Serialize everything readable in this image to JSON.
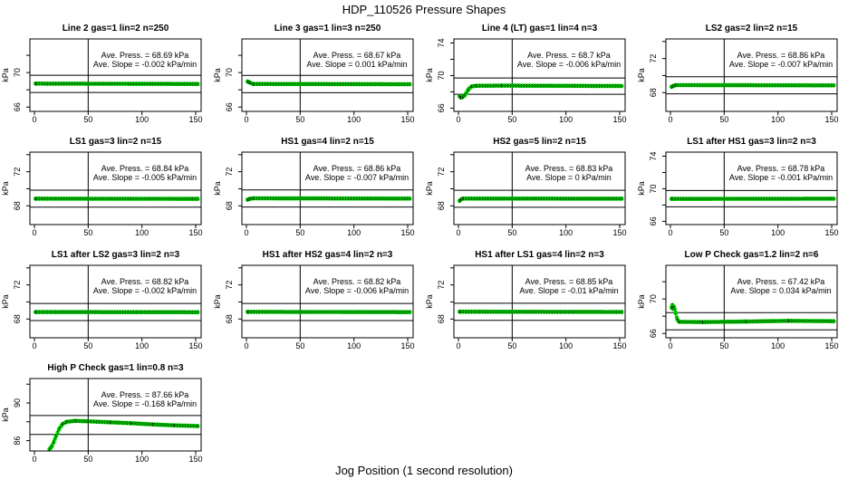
{
  "title": "HDP_110526  Pressure Shapes",
  "xlabel": "Jog Position (1 second resolution)",
  "colors": {
    "point_green": "#00e000",
    "axis_black": "#000000",
    "background": "#ffffff"
  },
  "chart_data": {
    "type": "scatter",
    "layout": "4x4 grid, 13 panels",
    "x_ticks": [
      0,
      50,
      100,
      150
    ],
    "x_axis_title": "Jog Position (1 second resolution)",
    "y_unit_label": "kPa",
    "vline_x": 50,
    "grid": "off",
    "plots": [
      {
        "title": "Line 2 gas=1 lin=2 n=250",
        "press_label": "Ave. Press. = 68.69 kPa",
        "slope_label": "Ave. Slope = -0.002 kPa/min",
        "ave_press_kpa": 68.69,
        "ave_slope_kpa_per_min": -0.002,
        "n": 250,
        "ylim": [
          65.5,
          73.9
        ],
        "yticks": [
          66,
          68,
          70,
          72
        ],
        "ytick_labels": [
          66,
          70
        ],
        "ref_lines": [
          69.69,
          67.69
        ],
        "x_range": [
          1,
          152
        ],
        "profile": [
          [
            1,
            68.72
          ],
          [
            152,
            68.68
          ]
        ]
      },
      {
        "title": "Line 3 gas=1 lin=3 n=250",
        "press_label": "Ave. Press. = 68.67 kPa",
        "slope_label": "Ave. Slope = 0.001 kPa/min",
        "ave_press_kpa": 68.67,
        "ave_slope_kpa_per_min": 0.001,
        "n": 250,
        "ylim": [
          65.5,
          73.9
        ],
        "yticks": [
          66,
          68,
          70,
          72
        ],
        "ytick_labels": [
          66,
          70
        ],
        "ref_lines": [
          69.67,
          67.67
        ],
        "x_range": [
          1,
          152
        ],
        "profile": [
          [
            1,
            68.95
          ],
          [
            3,
            68.85
          ],
          [
            6,
            68.68
          ],
          [
            152,
            68.65
          ]
        ]
      },
      {
        "title": "Line 4 (LT) gas=1 lin=4 n=3",
        "press_label": "Ave. Press. = 68.7 kPa",
        "slope_label": "Ave. Slope = -0.006 kPa/min",
        "ave_press_kpa": 68.7,
        "ave_slope_kpa_per_min": -0.006,
        "n": 3,
        "ylim": [
          65.6,
          74.5
        ],
        "yticks": [
          66,
          68,
          70,
          72,
          74
        ],
        "ytick_labels": [
          66,
          70,
          74
        ],
        "ref_lines": [
          69.7,
          67.7
        ],
        "x_range": [
          1,
          152
        ],
        "profile": [
          [
            1,
            67.45
          ],
          [
            2,
            67.3
          ],
          [
            4,
            67.35
          ],
          [
            6,
            67.6
          ],
          [
            9,
            68.25
          ],
          [
            12,
            68.65
          ],
          [
            16,
            68.74
          ],
          [
            40,
            68.76
          ],
          [
            152,
            68.72
          ]
        ]
      },
      {
        "title": "LS2 gas=2 lin=2 n=15",
        "press_label": "Ave. Press. = 68.86 kPa",
        "slope_label": "Ave. Slope = -0.007 kPa/min",
        "ave_press_kpa": 68.86,
        "ave_slope_kpa_per_min": -0.007,
        "n": 15,
        "ylim": [
          65.8,
          74.3
        ],
        "yticks": [
          68,
          70,
          72,
          74
        ],
        "ytick_labels": [
          68,
          72
        ],
        "ref_lines": [
          69.86,
          67.86
        ],
        "x_range": [
          1,
          152
        ],
        "profile": [
          [
            1,
            68.68
          ],
          [
            3,
            68.8
          ],
          [
            5,
            68.88
          ],
          [
            152,
            68.85
          ]
        ]
      },
      {
        "title": "LS1 gas=3 lin=2 n=15",
        "press_label": "Ave. Press. = 68.84 kPa",
        "slope_label": "Ave. Slope = -0.005 kPa/min",
        "ave_press_kpa": 68.84,
        "ave_slope_kpa_per_min": -0.005,
        "n": 15,
        "ylim": [
          65.8,
          74.3
        ],
        "yticks": [
          68,
          70,
          72,
          74
        ],
        "ytick_labels": [
          68,
          72
        ],
        "ref_lines": [
          69.84,
          67.84
        ],
        "x_range": [
          1,
          152
        ],
        "profile": [
          [
            1,
            68.84
          ],
          [
            152,
            68.82
          ]
        ]
      },
      {
        "title": "HS1 gas=4 lin=2 n=15",
        "press_label": "Ave. Press. = 68.86 kPa",
        "slope_label": "Ave. Slope = -0.007 kPa/min",
        "ave_press_kpa": 68.86,
        "ave_slope_kpa_per_min": -0.007,
        "n": 15,
        "ylim": [
          65.8,
          74.3
        ],
        "yticks": [
          68,
          70,
          72,
          74
        ],
        "ytick_labels": [
          68,
          72
        ],
        "ref_lines": [
          69.86,
          67.86
        ],
        "x_range": [
          1,
          152
        ],
        "profile": [
          [
            1,
            68.72
          ],
          [
            3,
            68.82
          ],
          [
            6,
            68.88
          ],
          [
            152,
            68.85
          ]
        ]
      },
      {
        "title": "HS2 gas=5 lin=2 n=15",
        "press_label": "Ave. Press. = 68.83 kPa",
        "slope_label": "Ave. Slope = 0 kPa/min",
        "ave_press_kpa": 68.83,
        "ave_slope_kpa_per_min": 0,
        "n": 15,
        "ylim": [
          65.8,
          74.3
        ],
        "yticks": [
          68,
          70,
          72,
          74
        ],
        "ytick_labels": [
          68,
          72
        ],
        "ref_lines": [
          69.83,
          67.83
        ],
        "x_range": [
          1,
          152
        ],
        "profile": [
          [
            1,
            68.58
          ],
          [
            2,
            68.72
          ],
          [
            4,
            68.85
          ],
          [
            152,
            68.84
          ]
        ]
      },
      {
        "title": "LS1 after HS1 gas=3 lin=2 n=3",
        "press_label": "Ave. Press. = 68.78 kPa",
        "slope_label": "Ave. Slope = -0.001 kPa/min",
        "ave_press_kpa": 68.78,
        "ave_slope_kpa_per_min": -0.001,
        "n": 3,
        "ylim": [
          65.6,
          74.5
        ],
        "yticks": [
          66,
          68,
          70,
          72,
          74
        ],
        "ytick_labels": [
          66,
          70,
          74
        ],
        "ref_lines": [
          69.78,
          67.78
        ],
        "x_range": [
          1,
          152
        ],
        "profile": [
          [
            1,
            68.76
          ],
          [
            152,
            68.78
          ]
        ]
      },
      {
        "title": "LS1 after LS2 gas=3 lin=2 n=3",
        "press_label": "Ave. Press. = 68.82 kPa",
        "slope_label": "Ave. Slope = -0.002 kPa/min",
        "ave_press_kpa": 68.82,
        "ave_slope_kpa_per_min": -0.002,
        "n": 3,
        "ylim": [
          65.8,
          74.3
        ],
        "yticks": [
          68,
          70,
          72,
          74
        ],
        "ytick_labels": [
          68,
          72
        ],
        "ref_lines": [
          69.82,
          67.82
        ],
        "x_range": [
          1,
          152
        ],
        "profile": [
          [
            1,
            68.82
          ],
          [
            152,
            68.8
          ]
        ]
      },
      {
        "title": "HS1 after HS2 gas=4 lin=2 n=3",
        "press_label": "Ave. Press. = 68.82 kPa",
        "slope_label": "Ave. Slope = -0.006 kPa/min",
        "ave_press_kpa": 68.82,
        "ave_slope_kpa_per_min": -0.006,
        "n": 3,
        "ylim": [
          65.8,
          74.3
        ],
        "yticks": [
          68,
          70,
          72,
          74
        ],
        "ytick_labels": [
          68,
          72
        ],
        "ref_lines": [
          69.82,
          67.82
        ],
        "x_range": [
          1,
          152
        ],
        "profile": [
          [
            1,
            68.84
          ],
          [
            152,
            68.81
          ]
        ]
      },
      {
        "title": "HS1 after LS1 gas=4 lin=2 n=3",
        "press_label": "Ave. Press. = 68.85 kPa",
        "slope_label": "Ave. Slope = -0.01 kPa/min",
        "ave_press_kpa": 68.85,
        "ave_slope_kpa_per_min": -0.01,
        "n": 3,
        "ylim": [
          65.8,
          74.3
        ],
        "yticks": [
          68,
          70,
          72,
          74
        ],
        "ytick_labels": [
          68,
          72
        ],
        "ref_lines": [
          69.85,
          67.85
        ],
        "x_range": [
          1,
          152
        ],
        "profile": [
          [
            1,
            68.86
          ],
          [
            152,
            68.83
          ]
        ]
      },
      {
        "title": "Low P Check gas=1.2 lin=2 n=6",
        "press_label": "Ave. Press. = 67.42 kPa",
        "slope_label": "Ave. Slope = 0.034 kPa/min",
        "ave_press_kpa": 67.42,
        "ave_slope_kpa_per_min": 0.034,
        "n": 6,
        "ylim": [
          65.5,
          73.9
        ],
        "yticks": [
          66,
          68,
          70,
          72
        ],
        "ytick_labels": [
          66,
          70
        ],
        "ref_lines": [
          68.42,
          66.42
        ],
        "x_range": [
          1,
          152
        ],
        "profile": [
          [
            1,
            69.0
          ],
          [
            1.8,
            69.3
          ],
          [
            2.4,
            68.85
          ],
          [
            3,
            69.15
          ],
          [
            4,
            68.85
          ],
          [
            5,
            68.3
          ],
          [
            6.5,
            67.6
          ],
          [
            8,
            67.35
          ],
          [
            30,
            67.32
          ],
          [
            70,
            67.38
          ],
          [
            110,
            67.46
          ],
          [
            152,
            67.42
          ]
        ]
      },
      {
        "title": "High P Check gas=1 lin=0.8 n=3",
        "press_label": "Ave. Press. = 87.66 kPa",
        "slope_label": "Ave. Slope = -0.168 kPa/min",
        "ave_press_kpa": 87.66,
        "ave_slope_kpa_per_min": -0.168,
        "n": 3,
        "ylim": [
          84.9,
          92.6
        ],
        "yticks": [
          86,
          88,
          90,
          92
        ],
        "ytick_labels": [
          86,
          90
        ],
        "ref_lines": [
          88.66,
          86.66
        ],
        "x_range": [
          14,
          152
        ],
        "profile": [
          [
            14,
            85.1
          ],
          [
            16,
            85.35
          ],
          [
            18,
            85.85
          ],
          [
            20,
            86.45
          ],
          [
            23,
            87.25
          ],
          [
            26,
            87.75
          ],
          [
            30,
            88.0
          ],
          [
            38,
            88.1
          ],
          [
            50,
            88.05
          ],
          [
            70,
            87.95
          ],
          [
            90,
            87.85
          ],
          [
            110,
            87.72
          ],
          [
            130,
            87.62
          ],
          [
            152,
            87.55
          ]
        ]
      }
    ]
  }
}
